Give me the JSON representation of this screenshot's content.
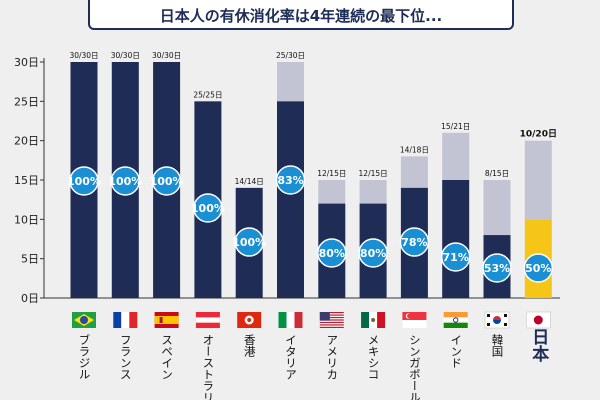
{
  "title": "日本人の有休消化率は4年連続の最下位...",
  "colors": {
    "bar_used": "#1f2c55",
    "bar_unused": "#c2c3d3",
    "japan_used": "#f5c518",
    "japan_unused": "#c2c3d3",
    "badge": "#1b8fd4",
    "badge_border": "#ffffff",
    "axis": "#333333",
    "background": "#efefef"
  },
  "chart_data": {
    "type": "bar",
    "stacked": true,
    "unit": "日",
    "yticks": [
      "0日",
      "5日",
      "10日",
      "15日",
      "20日",
      "25日",
      "30日"
    ],
    "ylim": [
      0,
      30
    ],
    "grid": false,
    "categories": [
      "ブラジル",
      "フランス",
      "スペイン",
      "オーストラリア",
      "香港",
      "イタリア",
      "アメリカ",
      "メキシコ",
      "シンガポール",
      "インド",
      "韓国",
      "日本"
    ],
    "flags": [
      "brazil",
      "france",
      "spain",
      "austria",
      "hongkong",
      "italy",
      "usa",
      "mexico",
      "singapore",
      "india",
      "korea",
      "japan"
    ],
    "used_days": [
      30,
      30,
      30,
      25,
      14,
      25,
      12,
      12,
      14,
      15,
      8,
      10
    ],
    "granted_days": [
      30,
      30,
      30,
      25,
      14,
      30,
      15,
      15,
      18,
      21,
      15,
      20
    ],
    "bar_labels": [
      "30/30日",
      "30/30日",
      "30/30日",
      "25/25日",
      "14/14日",
      "25/30日",
      "12/15日",
      "12/15日",
      "14/18日",
      "15/21日",
      "8/15日",
      "10/20日"
    ],
    "percent_labels": [
      "100%",
      "100%",
      "100%",
      "100%",
      "100%",
      "83%",
      "80%",
      "80%",
      "78%",
      "71%",
      "53%",
      "50%"
    ],
    "highlight_category": "日本"
  }
}
